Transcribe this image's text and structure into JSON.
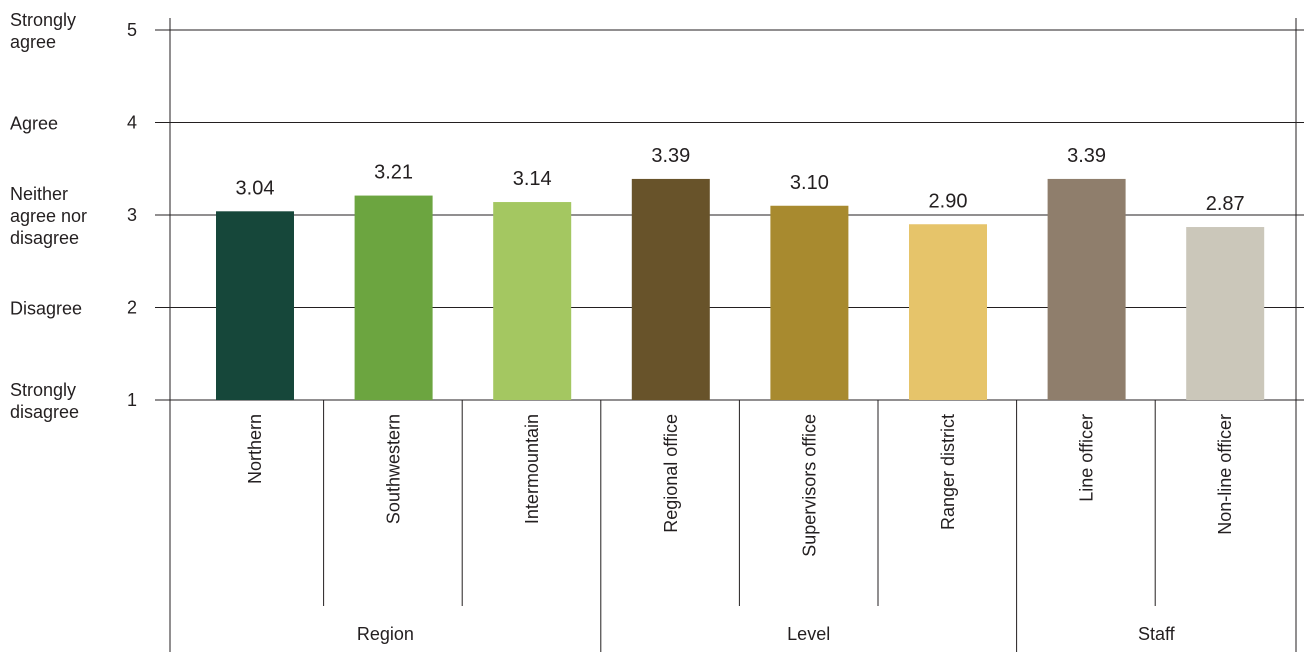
{
  "chart_data": {
    "type": "bar",
    "categories": [
      "Northern",
      "Southwestern",
      "Intermountain",
      "Regional office",
      "Supervisors office",
      "Ranger district",
      "Line officer",
      "Non-line officer"
    ],
    "values": [
      3.04,
      3.21,
      3.14,
      3.39,
      3.1,
      2.9,
      3.39,
      2.87
    ],
    "value_labels": [
      "3.04",
      "3.21",
      "3.14",
      "3.39",
      "3.10",
      "2.90",
      "3.39",
      "2.87"
    ],
    "colors": [
      "#16473a",
      "#6ca540",
      "#a4c761",
      "#68532a",
      "#a88a2f",
      "#e6c46a",
      "#8f7e6c",
      "#cbc7ba"
    ],
    "groups": [
      {
        "name": "Region",
        "start": 0,
        "count": 3
      },
      {
        "name": "Level",
        "start": 3,
        "count": 3
      },
      {
        "name": "Staff",
        "start": 6,
        "count": 2
      }
    ],
    "ylim": [
      1,
      5
    ],
    "yticks": [
      1,
      2,
      3,
      4,
      5
    ],
    "ytick_labels": [
      [
        "Strongly",
        "disagree"
      ],
      [
        "Disagree"
      ],
      [
        "Neither",
        "agree nor",
        "disagree"
      ],
      [
        "Agree"
      ],
      [
        "Strongly",
        "agree"
      ]
    ],
    "grid": true,
    "title": "",
    "xlabel": "",
    "ylabel": ""
  }
}
